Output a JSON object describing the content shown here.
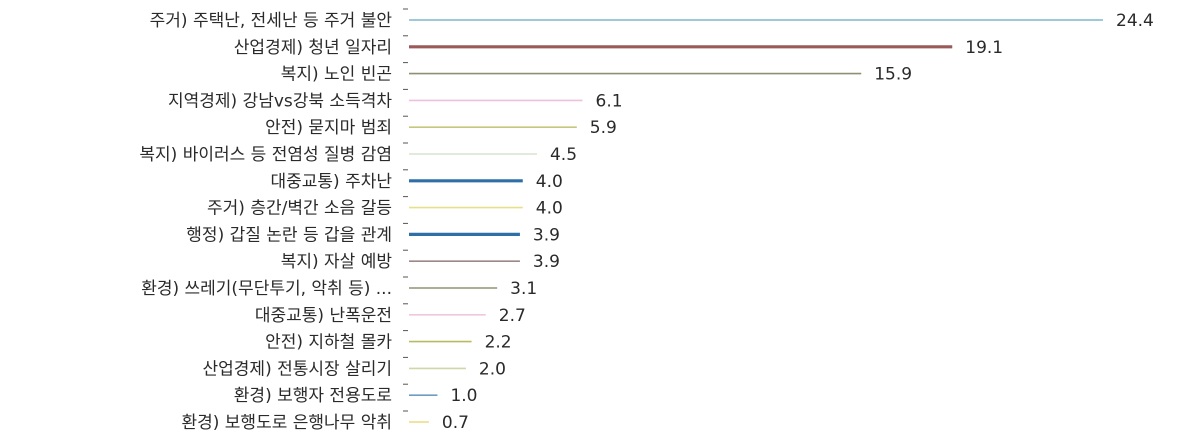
{
  "chart_data": {
    "type": "bar",
    "orientation": "horizontal",
    "title": "",
    "xlabel": "",
    "ylabel": "",
    "grid": false,
    "legend": "none",
    "xlim": [
      0,
      28
    ],
    "categories": [
      "주거) 주택난, 전세난 등 주거 불안",
      "산업경제) 청년 일자리",
      "복지) 노인 빈곤",
      "지역경제) 강남vs강북 소득격차",
      "안전) 묻지마 범죄",
      "복지) 바이러스 등 전염성 질병 감염",
      "대중교통) 주차난",
      "주거) 층간/벽간 소음 갈등",
      "행정) 갑질 논란 등 갑을 관계",
      "복지) 자살 예방",
      "환경) 쓰레기(무단투기, 악취 등) ...",
      "대중교통) 난폭운전",
      "안전) 지하철 몰카",
      "산업경제) 전통시장 살리기",
      "환경) 보행자 전용도로",
      "환경) 보행도로 은행나무 악취"
    ],
    "values": [
      24.4,
      19.1,
      15.9,
      6.1,
      5.9,
      4.5,
      4.0,
      4.0,
      3.9,
      3.9,
      3.1,
      2.7,
      2.2,
      2.0,
      1.0,
      0.7
    ],
    "value_labels": [
      "24.4",
      "19.1",
      "15.9",
      "6.1",
      "5.9",
      "4.5",
      "4.0",
      "4.0",
      "3.9",
      "3.9",
      "3.1",
      "2.7",
      "2.2",
      "2.0",
      "1.0",
      "0.7"
    ],
    "colors": [
      "#7fb9cc",
      "#9a5a5a",
      "#8f8f74",
      "#ecc0de",
      "#c6c77e",
      "#d8e3cf",
      "#2f6fa8",
      "#e6e08a",
      "#2f6fa8",
      "#9c8888",
      "#8f9570",
      "#f0c8de",
      "#b9bb63",
      "#cdd8a6",
      "#6f9dc2",
      "#ecdc7e"
    ],
    "bar_weights": [
      "normal",
      "bold",
      "normal",
      "normal",
      "normal",
      "normal",
      "bold",
      "normal",
      "bold",
      "normal",
      "normal",
      "normal",
      "normal",
      "normal",
      "normal",
      "normal"
    ]
  }
}
